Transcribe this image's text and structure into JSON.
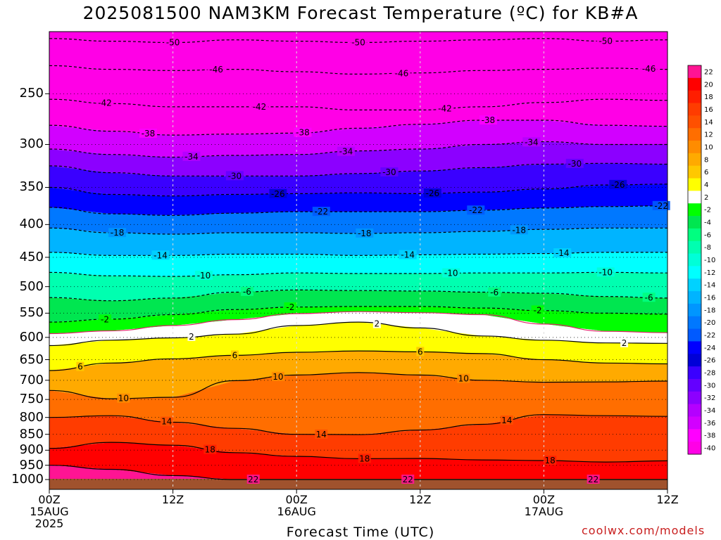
{
  "title": "2025081500 NAM3KM Forecast Temperature (ºC) for KB#A",
  "credit": "coolwx.com/models",
  "chart_data": {
    "type": "heatmap",
    "title": "2025081500 NAM3KM Forecast Temperature (ºC) for KB#A",
    "xlabel": "Forecast Time (UTC)",
    "ylabel": "",
    "x_ticks": [
      {
        "hour": 0,
        "lines": [
          "00Z",
          "15AUG",
          "2025"
        ]
      },
      {
        "hour": 12,
        "lines": [
          "12Z"
        ]
      },
      {
        "hour": 24,
        "lines": [
          "00Z",
          "16AUG"
        ]
      },
      {
        "hour": 36,
        "lines": [
          "12Z"
        ]
      },
      {
        "hour": 48,
        "lines": [
          "00Z",
          "17AUG"
        ]
      },
      {
        "hour": 60,
        "lines": [
          "12Z"
        ]
      }
    ],
    "xlim": [
      0,
      60
    ],
    "y_ticks": [
      250,
      300,
      350,
      400,
      450,
      500,
      550,
      600,
      650,
      700,
      750,
      800,
      850,
      900,
      950,
      1000
    ],
    "ylim": [
      1000,
      200
    ],
    "y_scale": "log",
    "y_unit": "hPa",
    "ground_color": "#a0522d",
    "grid": true,
    "legend": "right colorbar",
    "colorbar": {
      "levels": [
        22,
        20,
        18,
        16,
        14,
        12,
        10,
        8,
        6,
        4,
        2,
        -2,
        -4,
        -6,
        -8,
        -10,
        -12,
        -14,
        -16,
        -18,
        -20,
        -22,
        -24,
        -26,
        -28,
        -30,
        -32,
        -34,
        -36,
        -38,
        -40
      ],
      "colors": [
        "#ff1493",
        "#ff0000",
        "#ff1e00",
        "#ff3c00",
        "#ff5000",
        "#ff6e00",
        "#ff8c00",
        "#ffaa00",
        "#ffc800",
        "#ffff00",
        "#ffffff",
        "#00ff00",
        "#00e650",
        "#00ff80",
        "#00ffb0",
        "#00ffd8",
        "#00ffff",
        "#00d2ff",
        "#00b4ff",
        "#0096ff",
        "#0078ff",
        "#005aff",
        "#0000ff",
        "#0000d7",
        "#3a00ff",
        "#6400ff",
        "#8c00ff",
        "#b400ff",
        "#d200ff",
        "#ff00ff",
        "#ff00e6"
      ]
    },
    "isotherms": [
      {
        "temp": -50,
        "label": "-50",
        "dashed": true,
        "pressure": [
          205,
          207,
          208,
          206,
          207,
          208,
          207,
          206,
          205,
          207,
          206
        ]
      },
      {
        "temp": -46,
        "label": "-46",
        "dashed": true,
        "pressure": [
          226,
          229,
          230,
          229,
          231,
          233,
          232,
          230,
          229,
          228,
          229
        ]
      },
      {
        "temp": -42,
        "label": "-42",
        "dashed": true,
        "pressure": [
          255,
          259,
          262,
          262,
          262,
          265,
          265,
          262,
          258,
          255,
          256
        ]
      },
      {
        "temp": -38,
        "label": "-38",
        "dashed": true,
        "pressure": [
          280,
          286,
          290,
          289,
          288,
          283,
          279,
          275,
          275,
          280,
          281
        ]
      },
      {
        "temp": -34,
        "label": "-34",
        "dashed": true,
        "pressure": [
          305,
          311,
          314,
          312,
          311,
          307,
          305,
          300,
          297,
          300,
          300
        ]
      },
      {
        "temp": -30,
        "label": "-30",
        "dashed": true,
        "pressure": [
          324,
          332,
          336,
          336,
          336,
          333,
          330,
          326,
          322,
          321,
          322
        ]
      },
      {
        "temp": -26,
        "label": "-26",
        "dashed": true,
        "pressure": [
          350,
          359,
          361,
          359,
          358,
          357,
          358,
          356,
          352,
          347,
          346
        ]
      },
      {
        "temp": -22,
        "label": "-22",
        "dashed": true,
        "pressure": [
          376,
          385,
          387,
          384,
          382,
          382,
          382,
          380,
          377,
          375,
          374
        ]
      },
      {
        "temp": -18,
        "label": "-18",
        "dashed": true,
        "pressure": [
          405,
          412,
          414,
          412,
          412,
          413,
          412,
          410,
          407,
          405,
          405
        ]
      },
      {
        "temp": -14,
        "label": "-14",
        "dashed": true,
        "pressure": [
          442,
          447,
          447,
          445,
          445,
          447,
          446,
          445,
          444,
          442,
          442
        ]
      },
      {
        "temp": -10,
        "label": "-10",
        "dashed": true,
        "pressure": [
          475,
          481,
          482,
          479,
          476,
          477,
          477,
          476,
          476,
          475,
          476
        ]
      },
      {
        "temp": -6,
        "label": "-6",
        "dashed": true,
        "pressure": [
          520,
          526,
          521,
          510,
          506,
          507,
          508,
          510,
          512,
          518,
          521
        ]
      },
      {
        "temp": -2,
        "label": "-2",
        "dashed": true,
        "pressure": [
          568,
          562,
          553,
          543,
          538,
          537,
          537,
          540,
          545,
          550,
          552
        ]
      },
      {
        "temp": 0,
        "label": "",
        "dashed": false,
        "color": "#e0206a",
        "pressure": [
          592,
          586,
          575,
          563,
          551,
          547,
          549,
          553,
          572,
          587,
          590
        ]
      },
      {
        "temp": 2,
        "label": "2",
        "dashed": false,
        "pressure": [
          618,
          606,
          601,
          593,
          575,
          568,
          580,
          597,
          606,
          612,
          613
        ]
      },
      {
        "temp": 6,
        "label": "6",
        "dashed": false,
        "pressure": [
          676,
          658,
          648,
          640,
          633,
          630,
          632,
          636,
          650,
          658,
          660
        ]
      },
      {
        "temp": 10,
        "label": "10",
        "dashed": false,
        "pressure": [
          726,
          748,
          744,
          701,
          687,
          681,
          687,
          700,
          705,
          704,
          702
        ]
      },
      {
        "temp": 14,
        "label": "14",
        "dashed": false,
        "pressure": [
          800,
          795,
          814,
          832,
          850,
          851,
          837,
          820,
          792,
          795,
          797
        ]
      },
      {
        "temp": 18,
        "label": "18",
        "dashed": false,
        "pressure": [
          894,
          875,
          884,
          908,
          920,
          928,
          927,
          932,
          934,
          939,
          935
        ]
      },
      {
        "temp": 22,
        "label": "22",
        "dashed": false,
        "pressure": [
          950,
          964,
          986,
          1000,
          1000,
          1000,
          1000,
          1000,
          1000,
          1000,
          1000
        ]
      }
    ]
  }
}
